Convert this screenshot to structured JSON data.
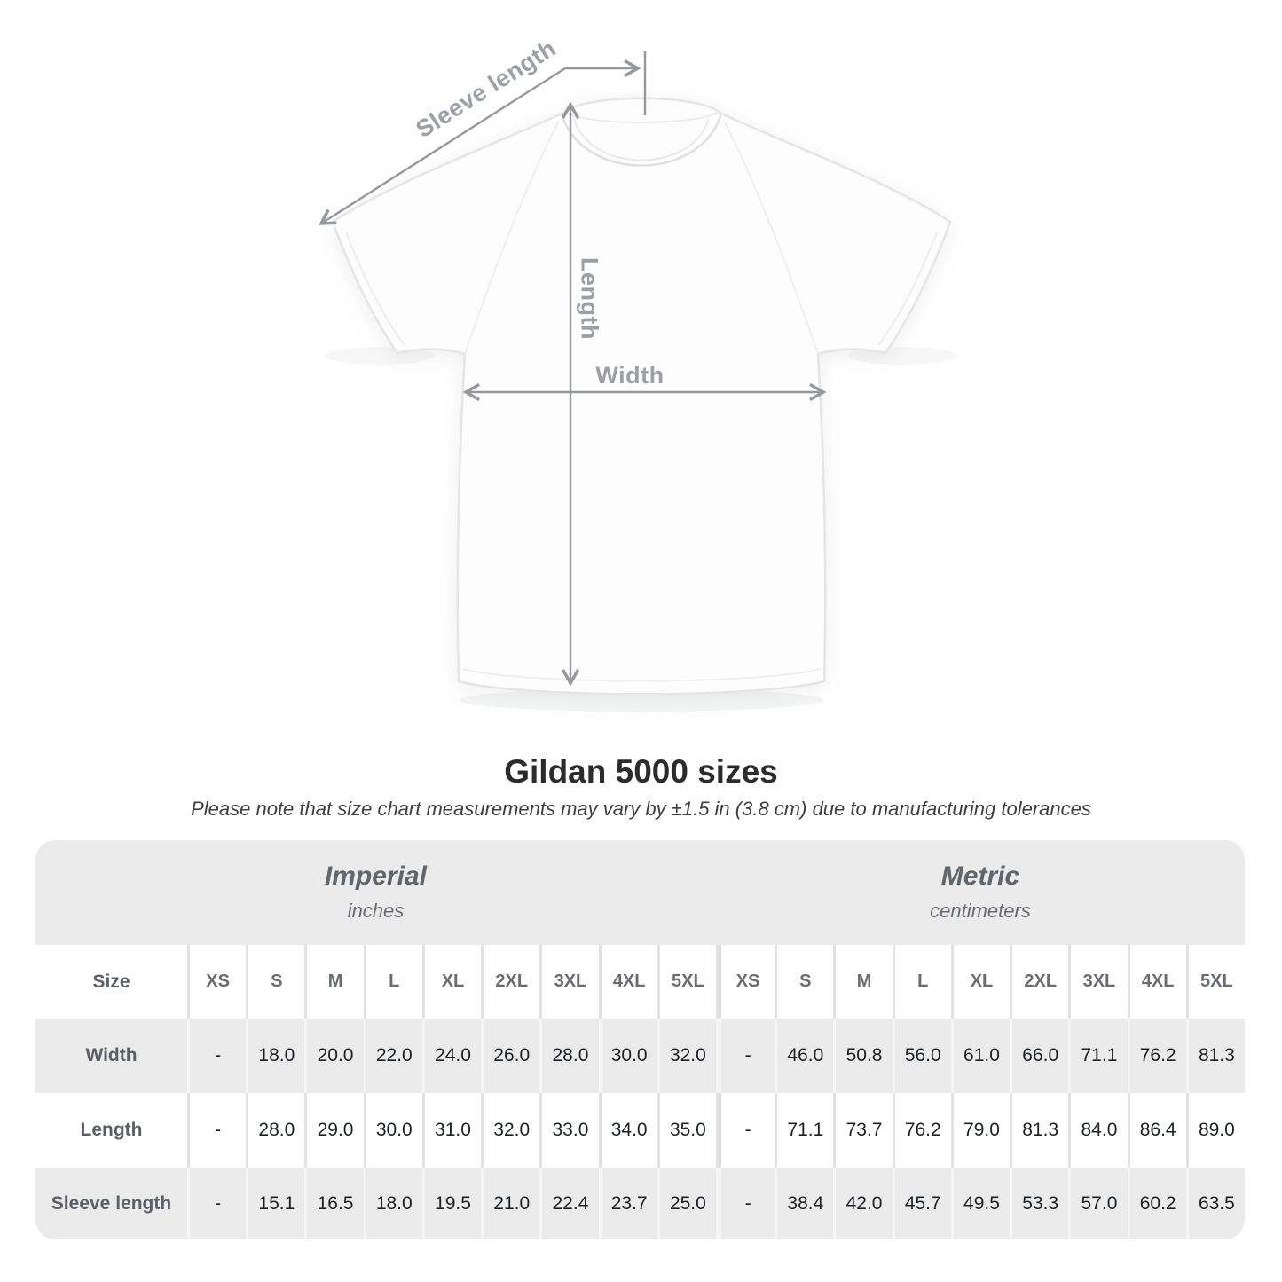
{
  "figure": {
    "sleeve_length_label": "Sleeve length",
    "length_label": "Length",
    "width_label": "Width"
  },
  "heading": {
    "title": "Gildan 5000 sizes",
    "subtitle": "Please note that size chart measurements may vary by ±1.5 in (3.8 cm) due to manufacturing tolerances"
  },
  "table": {
    "size_header": "Size",
    "sizes": [
      "XS",
      "S",
      "M",
      "L",
      "XL",
      "2XL",
      "3XL",
      "4XL",
      "5XL"
    ],
    "groups": [
      {
        "name": "Imperial",
        "unit": "inches"
      },
      {
        "name": "Metric",
        "unit": "centimeters"
      }
    ],
    "rows": [
      {
        "label": "Width",
        "imperial": [
          "-",
          "18.0",
          "20.0",
          "22.0",
          "24.0",
          "26.0",
          "28.0",
          "30.0",
          "32.0"
        ],
        "metric": [
          "-",
          "46.0",
          "50.8",
          "56.0",
          "61.0",
          "66.0",
          "71.1",
          "76.2",
          "81.3"
        ]
      },
      {
        "label": "Length",
        "imperial": [
          "-",
          "28.0",
          "29.0",
          "30.0",
          "31.0",
          "32.0",
          "33.0",
          "34.0",
          "35.0"
        ],
        "metric": [
          "-",
          "71.1",
          "73.7",
          "76.2",
          "79.0",
          "81.3",
          "84.0",
          "86.4",
          "89.0"
        ]
      },
      {
        "label": "Sleeve length",
        "imperial": [
          "-",
          "15.1",
          "16.5",
          "18.0",
          "19.5",
          "21.0",
          "22.4",
          "23.7",
          "25.0"
        ],
        "metric": [
          "-",
          "38.4",
          "42.0",
          "45.7",
          "49.5",
          "53.3",
          "57.0",
          "60.2",
          "63.5"
        ]
      }
    ]
  },
  "colors": {
    "band_gray": "#ebebeb",
    "row_gray": "#ebebeb",
    "separator_light": "#e2e2e2",
    "measure_gray": "#9aa0a5",
    "value_text": "#1e2124",
    "label_text": "#596067",
    "title_text": "#2c2c2c"
  }
}
